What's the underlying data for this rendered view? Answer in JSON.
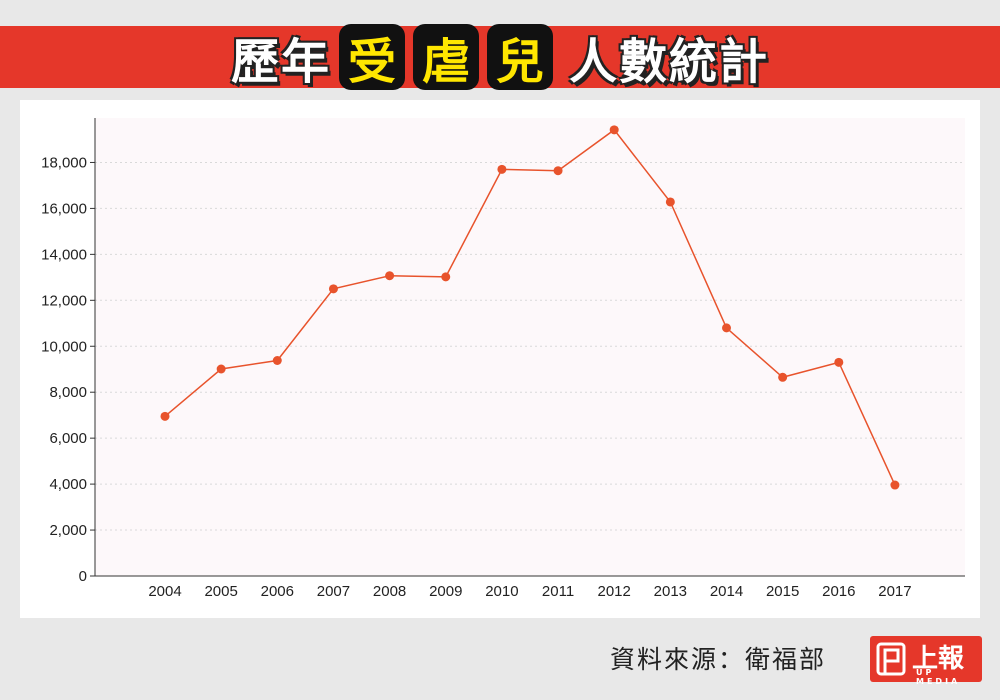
{
  "title": {
    "part1": "歷年",
    "box1": "受",
    "box2": "虐",
    "box3": "兒",
    "part2": "人數統計"
  },
  "source_text": "資料來源：衛福部",
  "logo": {
    "text": "上報",
    "sub": "UP MEDIA"
  },
  "colors": {
    "accent": "#e5372a",
    "line": "#e8532c",
    "title_box": "#111111",
    "title_box_text": "#ffe600"
  },
  "chart_data": {
    "type": "line",
    "categories": [
      "2004",
      "2005",
      "2006",
      "2007",
      "2008",
      "2009",
      "2010",
      "2011",
      "2012",
      "2013",
      "2014",
      "2015",
      "2016",
      "2017"
    ],
    "series": [
      {
        "values": [
          6950,
          9010,
          9380,
          12500,
          13070,
          13020,
          17700,
          17640,
          19420,
          16280,
          10800,
          8650,
          9300,
          3960
        ]
      }
    ],
    "ylim": [
      0,
      19500
    ],
    "yticks": [
      0,
      2000,
      4000,
      6000,
      8000,
      10000,
      12000,
      14000,
      16000,
      18000
    ],
    "ytick_labels": [
      "0",
      "2,000",
      "4,000",
      "6,000",
      "8,000",
      "10,000",
      "12,000",
      "14,000",
      "16,000",
      "18,000"
    ],
    "grid": true
  }
}
